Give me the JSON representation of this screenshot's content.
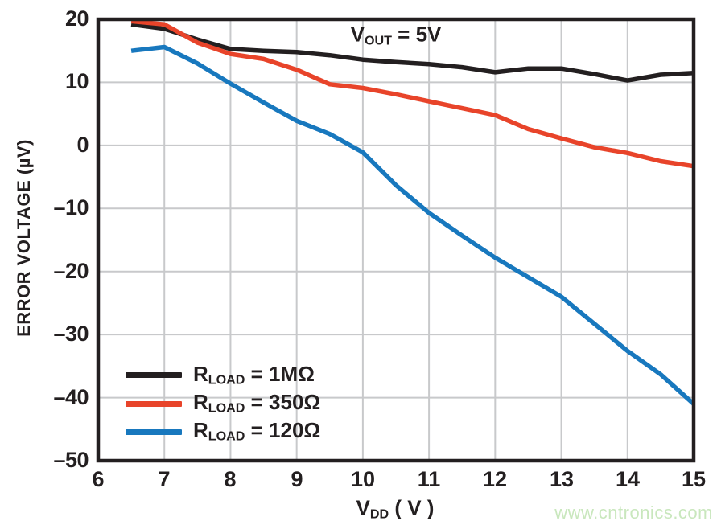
{
  "annotation": {
    "prefix": "V",
    "sub": "OUT",
    "suffix": " = 5V"
  },
  "axes": {
    "y_title": "ERROR VOLTAGE (µV)",
    "x_title": {
      "prefix": "V",
      "sub": "DD",
      "suffix": " ( V )"
    },
    "x_tick_labels": [
      "6",
      "7",
      "8",
      "9",
      "10",
      "11",
      "12",
      "13",
      "14",
      "15"
    ],
    "y_tick_labels": [
      "20",
      "10",
      "0",
      "–10",
      "–20",
      "–30",
      "–40",
      "–50"
    ]
  },
  "legend": {
    "items": [
      {
        "prefix": "R",
        "sub": "LOAD",
        "suffix": " = 1MΩ"
      },
      {
        "prefix": "R",
        "sub": "LOAD",
        "suffix": " = 350Ω"
      },
      {
        "prefix": "R",
        "sub": "LOAD",
        "suffix": " = 120Ω"
      }
    ]
  },
  "watermark": "www.cntronics.com",
  "colors": {
    "grid": "#c8c9cb",
    "frame": "#231f20",
    "text": "#231f20",
    "watermark": "#c9e7bd",
    "background": "#ffffff"
  },
  "chart_data": {
    "type": "line",
    "title": "",
    "annotation": "VOUT = 5V",
    "xlabel": "VDD (V)",
    "ylabel": "ERROR VOLTAGE (µV)",
    "xlim": [
      6,
      15
    ],
    "ylim": [
      -50,
      20
    ],
    "grid": true,
    "legend_position": "lower-left",
    "x_gridlines": [
      7,
      8,
      9,
      10,
      11,
      12,
      13,
      14
    ],
    "y_gridlines": [
      10,
      0,
      -10,
      -20,
      -30,
      -40
    ],
    "x": [
      6.5,
      7,
      7.5,
      8,
      8.5,
      9,
      9.5,
      10,
      10.5,
      11,
      11.5,
      12,
      12.5,
      13,
      13.5,
      14,
      14.5,
      15
    ],
    "series": [
      {
        "name": "RLOAD = 1MΩ",
        "color": "#231f20",
        "values": [
          19.2,
          18.5,
          16.8,
          15.3,
          15.0,
          14.8,
          14.3,
          13.6,
          13.2,
          12.9,
          12.4,
          11.6,
          12.2,
          12.2,
          11.3,
          10.3,
          11.2,
          11.5
        ]
      },
      {
        "name": "RLOAD = 350Ω",
        "color": "#e8442a",
        "values": [
          19.7,
          19.2,
          16.3,
          14.5,
          13.7,
          12.0,
          9.7,
          9.1,
          8.1,
          7.0,
          5.9,
          4.8,
          2.6,
          1.1,
          -0.3,
          -1.2,
          -2.5,
          -3.3
        ]
      },
      {
        "name": "RLOAD = 120Ω",
        "color": "#1878be",
        "values": [
          15.0,
          15.6,
          13.0,
          9.8,
          6.8,
          3.9,
          1.8,
          -1.1,
          -6.3,
          -10.7,
          -14.3,
          -17.8,
          -20.9,
          -24.0,
          -28.3,
          -32.6,
          -36.3,
          -41.0
        ]
      }
    ]
  }
}
